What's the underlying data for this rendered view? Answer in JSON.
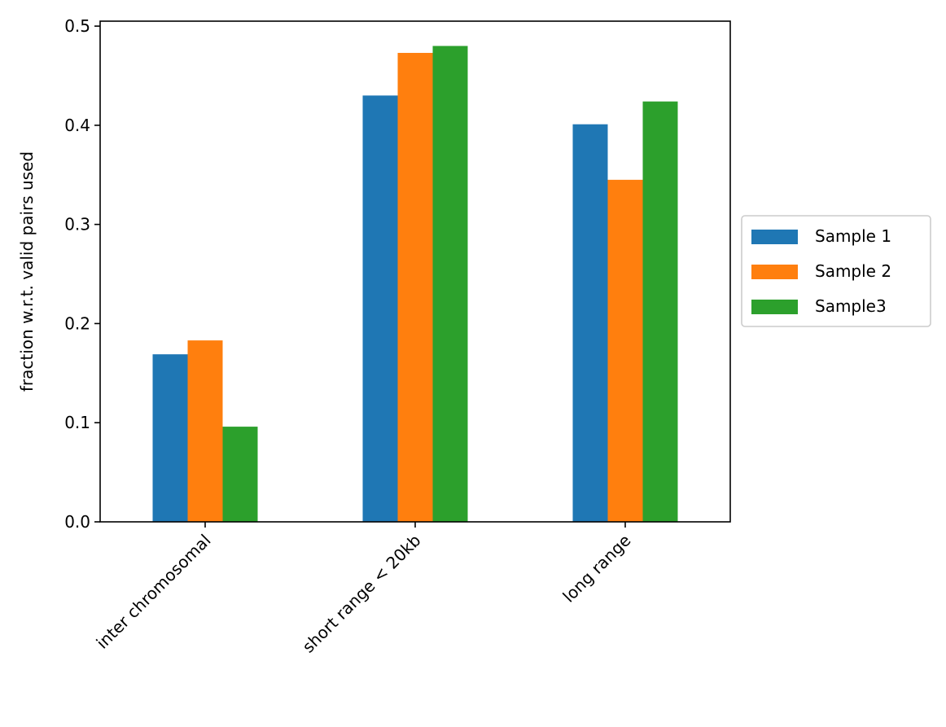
{
  "chart_data": {
    "type": "bar",
    "title": "",
    "xlabel": "",
    "ylabel": "fraction w.r.t. valid pairs used",
    "categories": [
      "inter chromosomal",
      "short range < 20kb",
      "long range"
    ],
    "series": [
      {
        "name": "Sample 1",
        "values": [
          0.169,
          0.43,
          0.401
        ],
        "color": "#1f77b4"
      },
      {
        "name": "Sample 2",
        "values": [
          0.183,
          0.473,
          0.345
        ],
        "color": "#ff7f0e"
      },
      {
        "name": "Sample3",
        "values": [
          0.096,
          0.48,
          0.424
        ],
        "color": "#2ca02c"
      }
    ],
    "ylim": [
      0,
      0.505
    ],
    "yticks": [
      {
        "value": 0.0,
        "label": "0.0"
      },
      {
        "value": 0.1,
        "label": "0.1"
      },
      {
        "value": 0.2,
        "label": "0.2"
      },
      {
        "value": 0.3,
        "label": "0.3"
      },
      {
        "value": 0.4,
        "label": "0.4"
      },
      {
        "value": 0.5,
        "label": "0.5"
      }
    ],
    "grid": false,
    "legend_position": "center-right outside"
  }
}
